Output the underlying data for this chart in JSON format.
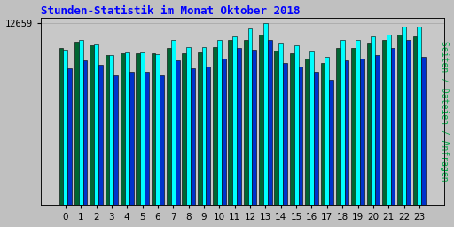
{
  "title": "Stunden-Statistik im Monat Oktober 2018",
  "ylabel_right": "Seiten / Dateien / Anfragen",
  "ytick_label": "12659",
  "categories": [
    0,
    1,
    2,
    3,
    4,
    5,
    6,
    7,
    8,
    9,
    10,
    11,
    12,
    13,
    14,
    15,
    16,
    17,
    18,
    19,
    20,
    21,
    22,
    23
  ],
  "anfragen": [
    840,
    870,
    850,
    800,
    810,
    810,
    810,
    840,
    810,
    815,
    845,
    880,
    880,
    910,
    825,
    810,
    780,
    760,
    840,
    840,
    860,
    880,
    910,
    900
  ],
  "seiten": [
    830,
    880,
    855,
    800,
    815,
    815,
    805,
    880,
    845,
    845,
    880,
    900,
    940,
    970,
    860,
    850,
    820,
    790,
    880,
    880,
    900,
    910,
    950,
    950
  ],
  "dateien": [
    730,
    770,
    750,
    690,
    710,
    710,
    690,
    770,
    730,
    740,
    780,
    840,
    830,
    880,
    760,
    740,
    710,
    670,
    770,
    780,
    800,
    840,
    880,
    790
  ],
  "color_anfragen": "#006633",
  "color_seiten": "#00ffff",
  "color_dateien": "#0033cc",
  "bg_color": "#c0c0c0",
  "plot_bg": "#c8c8c8",
  "title_color": "#0000ff",
  "ylabel_color": "#00aa44",
  "bar_edge_color": "#000000",
  "bar_width": 0.28,
  "ylim_max": 1000,
  "ytick_val": 970,
  "title_fontsize": 9,
  "tick_fontsize": 7.5
}
